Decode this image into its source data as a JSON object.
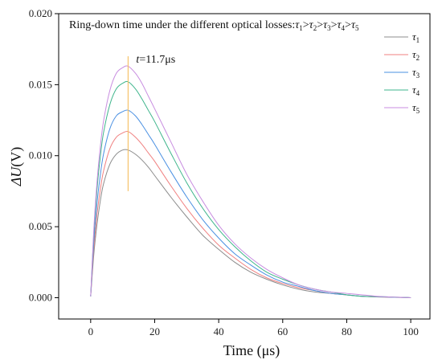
{
  "chart_data": {
    "type": "line",
    "title_prefix": "Ring-down time under the different optical losses:",
    "title_order": [
      {
        "sym": "τ",
        "sub": "1"
      },
      {
        "sep": ">"
      },
      {
        "sym": "τ",
        "sub": "2"
      },
      {
        "sep": ">"
      },
      {
        "sym": "τ",
        "sub": "3"
      },
      {
        "sep": ">"
      },
      {
        "sym": "τ",
        "sub": "4"
      },
      {
        "sep": ">"
      },
      {
        "sym": "τ",
        "sub": "5"
      }
    ],
    "xlabel": "Time (μs)",
    "ylabel_prefix": "ΔU",
    "ylabel_unit": "(V)",
    "xlim": [
      -10,
      106
    ],
    "ylim": [
      -0.0015,
      0.02
    ],
    "xticks": [
      "0",
      "20",
      "40",
      "60",
      "80",
      "100"
    ],
    "xtick_values": [
      0,
      20,
      40,
      60,
      80,
      100
    ],
    "yticks": [
      "0.000",
      "0.005",
      "0.010",
      "0.015",
      "0.020"
    ],
    "ytick_values": [
      0,
      0.005,
      0.01,
      0.015,
      0.02
    ],
    "legend_position": "top-right",
    "annotation": {
      "italic": "t",
      "text": "=11.7μs",
      "x": 11.7,
      "y_from": 0.0075,
      "y_to": 0.017,
      "color": "#f5c36b"
    },
    "series": [
      {
        "sym": "τ",
        "sub": "1",
        "color": "#8c8c8c",
        "x": [
          0,
          1,
          2,
          3,
          4,
          6,
          8,
          10,
          11.7,
          14,
          16,
          18,
          20,
          25,
          30,
          35,
          40,
          45,
          50,
          55,
          60,
          65,
          70,
          75,
          80,
          85,
          90,
          95,
          100
        ],
        "y": [
          0.0001,
          0.0031,
          0.0052,
          0.0068,
          0.008,
          0.0094,
          0.0101,
          0.0104,
          0.0104,
          0.0101,
          0.0097,
          0.0092,
          0.0086,
          0.0071,
          0.0057,
          0.0044,
          0.0034,
          0.0025,
          0.0018,
          0.0013,
          0.0009,
          0.0006,
          0.0004,
          0.0003,
          0.0002,
          0.0001,
          5e-05,
          3e-05,
          0.0
        ]
      },
      {
        "sym": "τ",
        "sub": "2",
        "color": "#f08080",
        "x": [
          0,
          1,
          2,
          3,
          4,
          6,
          8,
          10,
          11.7,
          14,
          16,
          18,
          20,
          25,
          30,
          35,
          40,
          45,
          50,
          55,
          60,
          65,
          70,
          75,
          80,
          85,
          90,
          95,
          100
        ],
        "y": [
          0.0001,
          0.0035,
          0.0059,
          0.0076,
          0.0089,
          0.0105,
          0.0113,
          0.0116,
          0.0117,
          0.0113,
          0.0108,
          0.0102,
          0.0096,
          0.0079,
          0.0063,
          0.0049,
          0.0037,
          0.0028,
          0.002,
          0.0014,
          0.001,
          0.0007,
          0.0005,
          0.0003,
          0.0002,
          0.0001,
          6e-05,
          3e-05,
          0.0
        ]
      },
      {
        "sym": "τ",
        "sub": "3",
        "color": "#4a90e2",
        "x": [
          0,
          1,
          2,
          3,
          4,
          6,
          8,
          10,
          11.7,
          14,
          16,
          18,
          20,
          25,
          30,
          35,
          40,
          45,
          50,
          55,
          60,
          65,
          70,
          75,
          80,
          85,
          90,
          95,
          100
        ],
        "y": [
          0.0001,
          0.004,
          0.0067,
          0.0086,
          0.0101,
          0.0119,
          0.0128,
          0.0131,
          0.0132,
          0.0128,
          0.0122,
          0.0115,
          0.0108,
          0.0089,
          0.0071,
          0.0055,
          0.0042,
          0.0031,
          0.0023,
          0.0016,
          0.0011,
          0.0008,
          0.0005,
          0.0003,
          0.0002,
          0.0001,
          7e-05,
          3e-05,
          0.0
        ]
      },
      {
        "sym": "τ",
        "sub": "4",
        "color": "#3fb58c",
        "x": [
          0,
          1,
          2,
          3,
          4,
          6,
          8,
          10,
          11.7,
          14,
          16,
          18,
          20,
          25,
          30,
          35,
          40,
          45,
          50,
          55,
          60,
          65,
          70,
          75,
          80,
          85,
          90,
          95,
          100
        ],
        "y": [
          0.0001,
          0.0046,
          0.0077,
          0.0099,
          0.0116,
          0.0136,
          0.0147,
          0.0151,
          0.0152,
          0.0147,
          0.014,
          0.0132,
          0.0124,
          0.0102,
          0.0081,
          0.0063,
          0.0048,
          0.0036,
          0.0026,
          0.0018,
          0.0013,
          0.0009,
          0.0006,
          0.0004,
          0.0002,
          0.0001,
          8e-05,
          4e-05,
          0.0
        ]
      },
      {
        "sym": "τ",
        "sub": "5",
        "color": "#c88de0",
        "x": [
          0,
          1,
          2,
          3,
          4,
          6,
          8,
          10,
          11.7,
          14,
          16,
          18,
          20,
          25,
          30,
          35,
          40,
          45,
          50,
          55,
          60,
          65,
          70,
          75,
          80,
          85,
          90,
          95,
          100
        ],
        "y": [
          0.0001,
          0.0049,
          0.0082,
          0.0106,
          0.0124,
          0.0146,
          0.0158,
          0.0162,
          0.0163,
          0.0158,
          0.0151,
          0.0142,
          0.0133,
          0.011,
          0.0087,
          0.0068,
          0.0051,
          0.0038,
          0.0028,
          0.002,
          0.0014,
          0.0009,
          0.0006,
          0.0004,
          0.0003,
          0.0002,
          9e-05,
          4e-05,
          0.0
        ]
      }
    ]
  }
}
